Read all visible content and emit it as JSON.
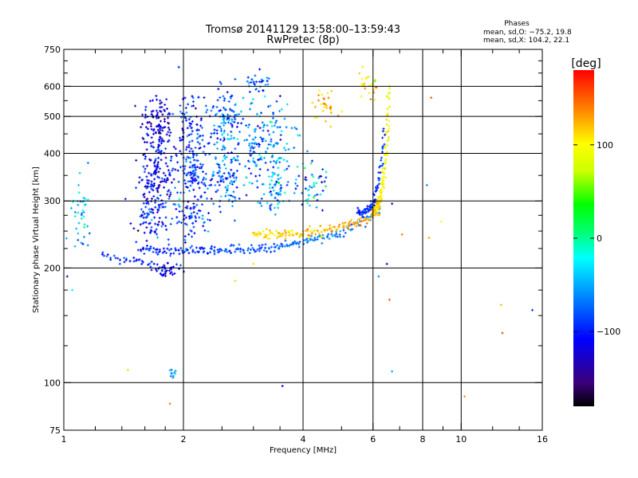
{
  "chart_data": {
    "type": "scatter",
    "title_line1": "Tromsø 20141129 13:58:00–13:59:43",
    "title_line2": "RwPretec (8p)",
    "stats": {
      "heading": "Phases",
      "line_o": "mean, sd,O: −75.2, 19.8",
      "line_x": "mean, sd,X: 104.2, 22.1"
    },
    "xlabel": "Frequency [MHz]",
    "ylabel": "Stationary phase Virtual Height [km]",
    "x_scale": "log",
    "y_scale": "log",
    "xlim": [
      1,
      16
    ],
    "ylim": [
      75,
      750
    ],
    "x_ticks": [
      1,
      2,
      4,
      6,
      8,
      10,
      16
    ],
    "x_tick_labels": [
      "1",
      "2",
      "4",
      "6",
      "8",
      "10",
      "16"
    ],
    "x_gridlines": [
      2,
      4,
      6,
      8,
      10
    ],
    "x_minor_ticks": [
      1.2,
      1.4,
      1.6,
      1.8,
      2.5,
      3,
      3.5,
      5,
      7,
      9,
      12,
      14
    ],
    "y_ticks": [
      75,
      100,
      200,
      300,
      400,
      500,
      600,
      750
    ],
    "y_tick_labels": [
      "75",
      "100",
      "200",
      "300",
      "400",
      "500",
      "600",
      "750"
    ],
    "y_gridlines": [
      100,
      200,
      300,
      400,
      500,
      600
    ],
    "y_minor_ticks": [
      125,
      150,
      175,
      225,
      250,
      275,
      350,
      450,
      550,
      650,
      700
    ],
    "grid": true,
    "colorbar": {
      "label": "[deg]",
      "range": [
        -180,
        180
      ],
      "ticks": [
        100,
        0,
        -100
      ],
      "tick_labels": [
        "100",
        "0",
        "−100"
      ],
      "colormap": "rainbow"
    },
    "traces": [
      {
        "f_start": 1.55,
        "f_end": 6.3,
        "h_start": 222,
        "h_end": 285,
        "curve": 4,
        "phase_start": -95,
        "phase_end": -60,
        "count": 230
      },
      {
        "f_start": 3.0,
        "f_end": 6.2,
        "h_start": 245,
        "h_end": 280,
        "curve": 3,
        "phase_start": 110,
        "phase_end": 130,
        "count": 150
      },
      {
        "f_start": 6.0,
        "f_end": 6.6,
        "h_start": 285,
        "h_end": 620,
        "curve": 3,
        "phase_start": 115,
        "phase_end": 90,
        "count": 130
      },
      {
        "f_start": 5.5,
        "f_end": 6.4,
        "h_start": 280,
        "h_end": 470,
        "curve": 4,
        "phase_start": -100,
        "phase_end": -90,
        "count": 90
      },
      {
        "f_start": 1.25,
        "f_end": 2.0,
        "h_start": 215,
        "h_end": 200,
        "curve": 1,
        "phase_start": -95,
        "phase_end": -110,
        "count": 50
      }
    ],
    "clusters": [
      {
        "f": 1.72,
        "h": 470,
        "f_spread": 0.05,
        "h_spread": 0.11,
        "phase": -120,
        "phase_sd": 20,
        "count": 120
      },
      {
        "f": 1.72,
        "h": 350,
        "f_spread": 0.05,
        "h_spread": 0.09,
        "phase": -110,
        "phase_sd": 20,
        "count": 120
      },
      {
        "f": 1.65,
        "h": 270,
        "f_spread": 0.05,
        "h_spread": 0.08,
        "phase": -105,
        "phase_sd": 25,
        "count": 90
      },
      {
        "f": 2.1,
        "h": 470,
        "f_spread": 0.05,
        "h_spread": 0.12,
        "phase": -95,
        "phase_sd": 20,
        "count": 100
      },
      {
        "f": 2.1,
        "h": 350,
        "f_spread": 0.05,
        "h_spread": 0.09,
        "phase": -95,
        "phase_sd": 20,
        "count": 100
      },
      {
        "f": 2.1,
        "h": 270,
        "f_spread": 0.06,
        "h_spread": 0.07,
        "phase": -90,
        "phase_sd": 25,
        "count": 70
      },
      {
        "f": 2.55,
        "h": 480,
        "f_spread": 0.05,
        "h_spread": 0.12,
        "phase": -70,
        "phase_sd": 25,
        "count": 110
      },
      {
        "f": 2.55,
        "h": 340,
        "f_spread": 0.05,
        "h_spread": 0.1,
        "phase": -70,
        "phase_sd": 25,
        "count": 90
      },
      {
        "f": 3.0,
        "h": 430,
        "f_spread": 0.05,
        "h_spread": 0.14,
        "phase": -60,
        "phase_sd": 30,
        "count": 90
      },
      {
        "f": 3.4,
        "h": 330,
        "f_spread": 0.05,
        "h_spread": 0.09,
        "phase": -55,
        "phase_sd": 35,
        "count": 80
      },
      {
        "f": 3.4,
        "h": 450,
        "f_spread": 0.05,
        "h_spread": 0.11,
        "phase": -60,
        "phase_sd": 25,
        "count": 60
      },
      {
        "f": 1.1,
        "h": 280,
        "f_spread": 0.03,
        "h_spread": 0.12,
        "phase": -40,
        "phase_sd": 30,
        "count": 40
      },
      {
        "f": 4.2,
        "h": 330,
        "f_spread": 0.05,
        "h_spread": 0.08,
        "phase": -60,
        "phase_sd": 40,
        "count": 50
      },
      {
        "f": 4.6,
        "h": 530,
        "f_spread": 0.04,
        "h_spread": 0.04,
        "phase": 120,
        "phase_sd": 25,
        "count": 30
      },
      {
        "f": 5.8,
        "h": 610,
        "f_spread": 0.03,
        "h_spread": 0.04,
        "phase": 110,
        "phase_sd": 30,
        "count": 25
      },
      {
        "f": 3.1,
        "h": 610,
        "f_spread": 0.04,
        "h_spread": 0.03,
        "phase": -80,
        "phase_sd": 20,
        "count": 30
      },
      {
        "f": 1.88,
        "h": 108,
        "f_spread": 0.01,
        "h_spread": 0.02,
        "phase": -60,
        "phase_sd": 10,
        "count": 10
      },
      {
        "f": 1.8,
        "h": 195,
        "f_spread": 0.04,
        "h_spread": 0.02,
        "phase": -120,
        "phase_sd": 10,
        "count": 20
      }
    ],
    "scattered_points": [
      {
        "f": 8.4,
        "h": 560,
        "phase": 150
      },
      {
        "f": 8.2,
        "h": 330,
        "phase": -60
      },
      {
        "f": 8.9,
        "h": 265,
        "phase": 100
      },
      {
        "f": 8.3,
        "h": 240,
        "phase": 130
      },
      {
        "f": 7.1,
        "h": 245,
        "phase": 140
      },
      {
        "f": 6.6,
        "h": 165,
        "phase": 150
      },
      {
        "f": 6.7,
        "h": 107,
        "phase": -50
      },
      {
        "f": 6.2,
        "h": 190,
        "phase": -60
      },
      {
        "f": 12.6,
        "h": 160,
        "phase": 120
      },
      {
        "f": 12.7,
        "h": 135,
        "phase": 160
      },
      {
        "f": 15.1,
        "h": 155,
        "phase": -90
      },
      {
        "f": 10.2,
        "h": 92,
        "phase": 130
      },
      {
        "f": 3.55,
        "h": 98,
        "phase": -110
      },
      {
        "f": 1.85,
        "h": 88,
        "phase": 140
      },
      {
        "f": 1.45,
        "h": 108,
        "phase": 110
      },
      {
        "f": 3.0,
        "h": 205,
        "phase": 110
      },
      {
        "f": 2.7,
        "h": 185,
        "phase": 110
      },
      {
        "f": 6.5,
        "h": 205,
        "phase": -140
      },
      {
        "f": 6.7,
        "h": 295,
        "phase": -120
      },
      {
        "f": 1.05,
        "h": 175,
        "phase": -20
      },
      {
        "f": 1.02,
        "h": 190,
        "phase": -130
      }
    ]
  }
}
